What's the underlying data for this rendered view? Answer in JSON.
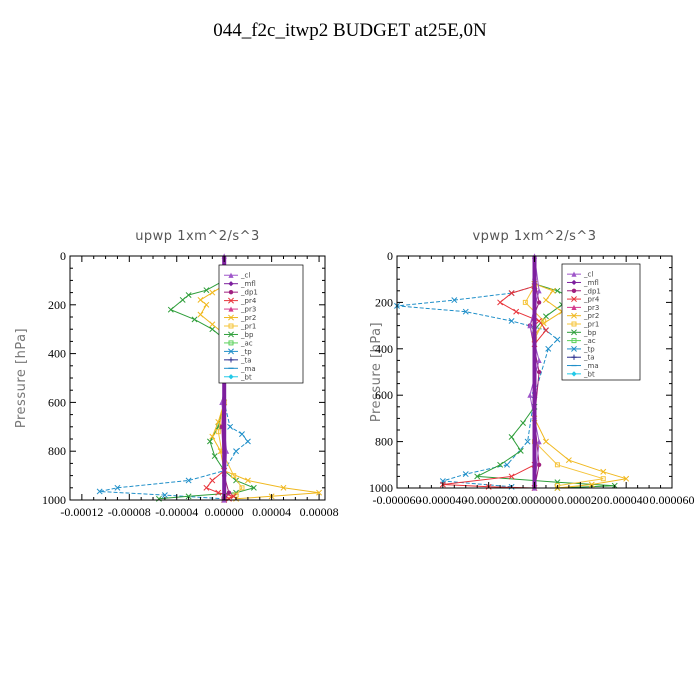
{
  "page_title": "044_f2c_itwp2  BUDGET at25E,0N",
  "legend_entries": [
    {
      "name": "_cl",
      "color": "#9e55c9",
      "symbol": "triangle"
    },
    {
      "name": "_mfl",
      "color": "#7d1f9e",
      "symbol": "diamond"
    },
    {
      "name": "_dp1",
      "color": "#a0207f",
      "symbol": "circle"
    },
    {
      "name": "_pr4",
      "color": "#e8333a",
      "symbol": "x"
    },
    {
      "name": "_pr3",
      "color": "#d43a8c",
      "symbol": "triangle"
    },
    {
      "name": "_pr2",
      "color": "#f0b81e",
      "symbol": "x"
    },
    {
      "name": "_pr1",
      "color": "#f5c43a",
      "symbol": "square"
    },
    {
      "name": "_bp",
      "color": "#2e9e3a",
      "symbol": "x"
    },
    {
      "name": "_ac",
      "color": "#5ad05a",
      "symbol": "square"
    },
    {
      "name": "_tp",
      "color": "#1f8fc9",
      "symbol": "x"
    },
    {
      "name": "_ta",
      "color": "#2b2f8f",
      "symbol": "plus"
    },
    {
      "name": "_ma",
      "color": "#1f8fc9",
      "symbol": "dash"
    },
    {
      "name": "_bt",
      "color": "#22c9e8",
      "symbol": "diamond"
    }
  ],
  "chart_data": [
    {
      "type": "line",
      "title": "upwp   1xm^2/s^3",
      "ylabel": "Pressure [hPa]",
      "xlabel": "",
      "xlim": [
        -0.00013,
        8.5e-05
      ],
      "ylim": [
        1000,
        0
      ],
      "xticks": [
        -0.00012,
        -8e-05,
        -4e-05,
        0.0,
        4e-05,
        8e-05
      ],
      "xtick_labels": [
        "-0.00012",
        "-0.00008",
        "-0.00004",
        "0.00000",
        "0.00004",
        "0.00008"
      ],
      "yticks": [
        0,
        200,
        400,
        600,
        800,
        1000
      ],
      "ytick_labels": [
        "0",
        "200",
        "400",
        "600",
        "800",
        "1000"
      ],
      "legend_position": "top-right",
      "series": [
        {
          "name": "_tp",
          "color": "#1f8fc9",
          "dashed": true,
          "marker": "x",
          "x": [
            0,
            5e-06,
            1.5e-05,
            3e-05,
            4e-05,
            3e-05,
            1e-05,
            2e-06,
            0,
            5e-06,
            1.5e-05,
            2e-05,
            1e-05,
            0,
            -3e-05,
            -9e-05,
            -0.000105,
            -5e-05,
            0
          ],
          "y": [
            60,
            120,
            180,
            210,
            230,
            270,
            320,
            360,
            600,
            700,
            730,
            760,
            800,
            880,
            920,
            950,
            965,
            980,
            995
          ]
        },
        {
          "name": "_bp",
          "color": "#2e9e3a",
          "dashed": false,
          "marker": "x",
          "x": [
            0,
            -1.5e-05,
            -3e-05,
            -3.5e-05,
            -4.5e-05,
            -2.5e-05,
            -1e-05,
            0,
            0,
            -5e-06,
            -1.2e-05,
            -8e-06,
            0,
            1e-05,
            2.5e-05,
            1e-05,
            -3e-05,
            -5.5e-05
          ],
          "y": [
            100,
            140,
            160,
            180,
            220,
            260,
            300,
            340,
            600,
            700,
            760,
            820,
            880,
            920,
            950,
            970,
            985,
            995
          ]
        },
        {
          "name": "_pr2",
          "color": "#f0b81e",
          "dashed": false,
          "marker": "x",
          "x": [
            0,
            -1e-05,
            -2e-05,
            -1.5e-05,
            -2e-05,
            -1e-05,
            0,
            0,
            -5e-06,
            -1e-05,
            -3e-06,
            0,
            2e-05,
            5e-05,
            8e-05,
            4e-05,
            1e-05
          ],
          "y": [
            120,
            150,
            180,
            200,
            240,
            280,
            320,
            600,
            680,
            740,
            800,
            880,
            920,
            950,
            970,
            985,
            995
          ]
        },
        {
          "name": "_pr1",
          "color": "#f5c43a",
          "dashed": false,
          "marker": "square",
          "x": [
            0,
            5e-06,
            1e-05,
            1e-05,
            3e-06,
            0,
            0,
            -5e-06,
            -2e-06,
            8e-06,
            1.5e-05,
            1e-05,
            0
          ],
          "y": [
            130,
            180,
            240,
            300,
            340,
            380,
            600,
            720,
            800,
            900,
            950,
            980,
            995
          ]
        },
        {
          "name": "_pr4",
          "color": "#e8333a",
          "dashed": false,
          "marker": "x",
          "x": [
            0,
            8e-06,
            1.5e-05,
            8e-06,
            1.2e-05,
            2e-06,
            0,
            0,
            -1e-05,
            -1.5e-05,
            -5e-06,
            8e-06,
            4e-06,
            0
          ],
          "y": [
            120,
            150,
            170,
            200,
            230,
            270,
            320,
            880,
            920,
            950,
            970,
            985,
            995,
            1000
          ]
        },
        {
          "name": "_dp1",
          "color": "#a0207f",
          "dashed": false,
          "marker": "circle",
          "x": [
            0,
            3e-06,
            2e-06,
            4e-06,
            0,
            -2e-06,
            0,
            4e-06,
            0
          ],
          "y": [
            100,
            180,
            260,
            340,
            500,
            700,
            900,
            970,
            1000
          ]
        },
        {
          "name": "_cl",
          "color": "#9e55c9",
          "dashed": false,
          "marker": "triangle",
          "x": [
            0,
            2e-06,
            -2e-06,
            2e-06,
            -2e-06,
            2e-06,
            -2e-06,
            2e-06,
            0
          ],
          "y": [
            0,
            100,
            200,
            300,
            400,
            500,
            600,
            800,
            1000
          ]
        },
        {
          "name": "_mfl",
          "color": "#7d1f9e",
          "dashed": false,
          "marker": "diamond",
          "x": [
            0,
            0,
            0,
            0,
            0,
            0
          ],
          "y": [
            0,
            200,
            400,
            600,
            800,
            1000
          ]
        }
      ]
    },
    {
      "type": "line",
      "title": "vpwp   1xm^2/s^3",
      "ylabel": "Pressure [hPa]",
      "xlabel": "",
      "xlim": [
        -6e-05,
        6e-05
      ],
      "ylim": [
        1000,
        0
      ],
      "xticks": [
        -6e-05,
        -4e-05,
        -2e-05,
        0.0,
        2e-05,
        4e-05,
        6e-05
      ],
      "xtick_labels": [
        "-0.000060",
        "-0.000040",
        "-0.000020",
        "0.000000",
        "0.000020",
        "0.000040",
        "0.000060"
      ],
      "yticks": [
        0,
        200,
        400,
        600,
        800,
        1000
      ],
      "ytick_labels": [
        "0",
        "200",
        "400",
        "600",
        "800",
        "1000"
      ],
      "legend_position": "top-right",
      "series": [
        {
          "name": "_tp",
          "color": "#1f8fc9",
          "dashed": true,
          "marker": "x",
          "x": [
            0,
            -1e-05,
            -3.5e-05,
            -6e-05,
            -3e-05,
            -1e-05,
            5e-06,
            1e-05,
            6e-06,
            0,
            -3e-06,
            -1.2e-05,
            -3e-05,
            -4e-05,
            -1e-05
          ],
          "y": [
            130,
            160,
            190,
            215,
            240,
            280,
            320,
            360,
            400,
            600,
            800,
            900,
            940,
            970,
            995
          ]
        },
        {
          "name": "_bp",
          "color": "#2e9e3a",
          "dashed": false,
          "marker": "x",
          "x": [
            0,
            1e-05,
            1.5e-05,
            1.2e-05,
            5e-06,
            0,
            0,
            -5e-06,
            -1e-05,
            -6e-06,
            -1.5e-05,
            -2.5e-05,
            1e-05,
            3.5e-05,
            1e-05
          ],
          "y": [
            120,
            150,
            175,
            210,
            260,
            320,
            650,
            720,
            780,
            840,
            900,
            950,
            975,
            990,
            1000
          ]
        },
        {
          "name": "_pr2",
          "color": "#f0b81e",
          "dashed": false,
          "marker": "x",
          "x": [
            0,
            8e-06,
            5e-06,
            1.2e-05,
            4e-06,
            0,
            0,
            5e-06,
            1.5e-05,
            3e-05,
            4e-05,
            2.5e-05,
            1e-05
          ],
          "y": [
            120,
            150,
            190,
            240,
            290,
            340,
            700,
            800,
            880,
            930,
            960,
            985,
            1000
          ]
        },
        {
          "name": "_pr1",
          "color": "#f5c43a",
          "dashed": false,
          "marker": "square",
          "x": [
            0,
            -4e-06,
            4e-06,
            0,
            0,
            1e-05,
            3e-05,
            1e-05
          ],
          "y": [
            130,
            200,
            280,
            360,
            800,
            900,
            960,
            990
          ]
        },
        {
          "name": "_pr4",
          "color": "#e8333a",
          "dashed": false,
          "marker": "x",
          "x": [
            0,
            -1e-05,
            -1.5e-05,
            -8e-06,
            2e-06,
            5e-06,
            0,
            0,
            -1e-05,
            -4e-05,
            -2e-05,
            0
          ],
          "y": [
            130,
            160,
            200,
            240,
            280,
            320,
            380,
            900,
            950,
            985,
            995,
            1000
          ]
        },
        {
          "name": "_dp1",
          "color": "#a0207f",
          "dashed": false,
          "marker": "circle",
          "x": [
            0,
            2e-06,
            -2e-06,
            2e-06,
            0,
            2e-06,
            0
          ],
          "y": [
            100,
            200,
            300,
            500,
            700,
            900,
            1000
          ]
        },
        {
          "name": "_cl",
          "color": "#9e55c9",
          "dashed": false,
          "marker": "triangle",
          "x": [
            0,
            2e-06,
            -2e-06,
            2e-06,
            -2e-06,
            2e-06,
            0
          ],
          "y": [
            0,
            150,
            300,
            450,
            600,
            800,
            1000
          ]
        },
        {
          "name": "_mfl",
          "color": "#7d1f9e",
          "dashed": false,
          "marker": "diamond",
          "x": [
            0,
            0,
            0,
            0,
            0,
            0
          ],
          "y": [
            0,
            200,
            400,
            600,
            800,
            1000
          ]
        }
      ]
    }
  ]
}
